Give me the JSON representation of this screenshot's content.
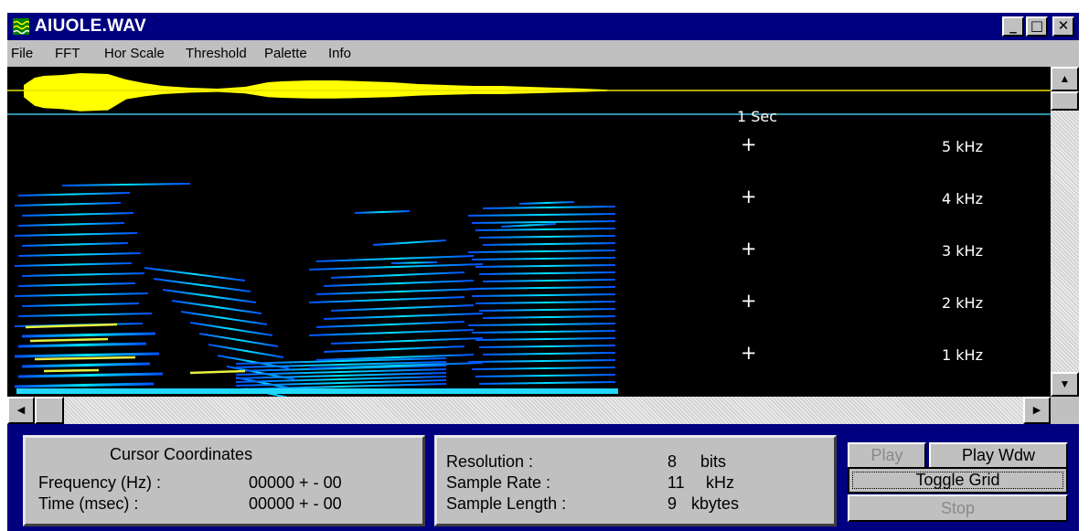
{
  "window": {
    "title": "AIUOLE.WAV"
  },
  "title_buttons": {
    "minimize": "_",
    "maximize": "□",
    "close": "✕"
  },
  "menu": [
    "File",
    "FFT",
    "Hor Scale",
    "Threshold",
    "Palette",
    "Info"
  ],
  "spectrogram": {
    "time_marker": "1 Sec",
    "freq_labels": [
      "5 kHz",
      "4 kHz",
      "3 kHz",
      "2 kHz",
      "1 kHz"
    ],
    "colors": {
      "background": "#000000",
      "waveform": "#ffff00",
      "line": "#00c8ff",
      "energy_low": "#0040ff",
      "energy_mid": "#00d8ff",
      "energy_high": "#ffff40"
    }
  },
  "cursor_panel": {
    "title": "Cursor Coordinates",
    "freq_label": "Frequency (Hz) :",
    "freq_value": "00000 + - 00",
    "time_label": "Time (msec) :",
    "time_value": "00000 + - 00"
  },
  "info_panel": {
    "resolution_label": "Resolution :",
    "resolution_value": "8",
    "resolution_unit": "bits",
    "rate_label": "Sample Rate :",
    "rate_value": "11",
    "rate_unit": "kHz",
    "length_label": "Sample Length :",
    "length_value": "9",
    "length_unit": "kbytes"
  },
  "buttons": {
    "play": "Play",
    "play_wdw": "Play Wdw",
    "toggle_grid": "Toggle Grid",
    "stop": "Stop"
  },
  "scroll_arrows": {
    "up": "▲",
    "down": "▼",
    "left": "◀",
    "right": "▶"
  }
}
